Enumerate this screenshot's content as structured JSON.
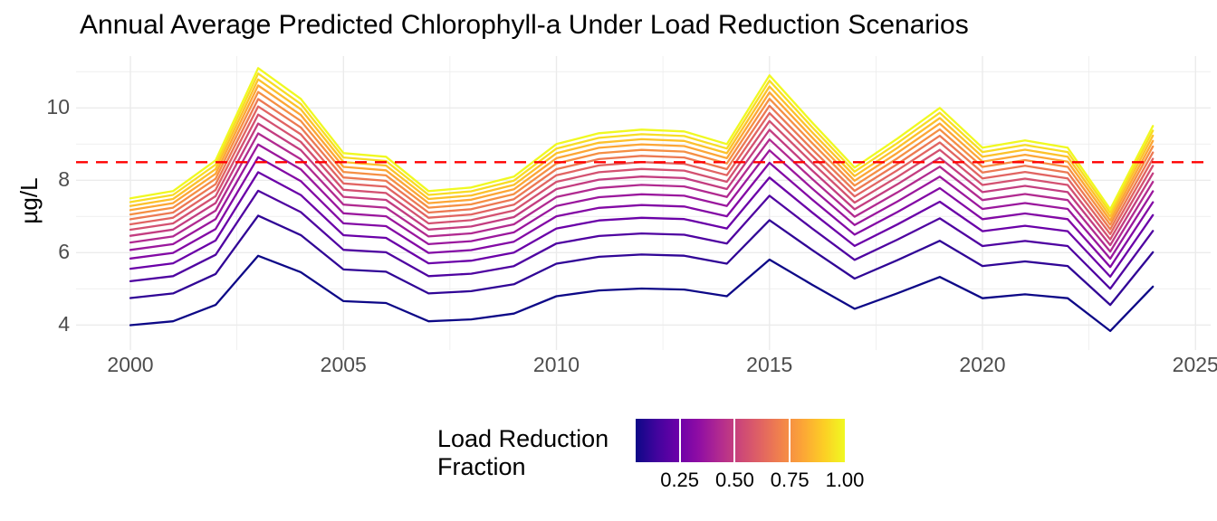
{
  "title": "Annual Average Predicted Chlorophyll-a Under Load Reduction Scenarios",
  "y_axis": {
    "label": "µg/L",
    "tick_labels": [
      "4",
      "6",
      "8",
      "10"
    ],
    "tick_values": [
      4,
      6,
      8,
      10
    ],
    "minor_values": [
      5,
      7,
      9,
      11
    ]
  },
  "x_axis": {
    "tick_labels": [
      "2000",
      "2005",
      "2010",
      "2015",
      "2020",
      "2025"
    ],
    "tick_values": [
      2000,
      2005,
      2010,
      2015,
      2020,
      2025
    ],
    "minor_values": [
      2002.5,
      2007.5,
      2012.5,
      2017.5,
      2022.5
    ]
  },
  "reference_line": {
    "value": 8.5,
    "color": "#ff0000",
    "style": "dashed"
  },
  "legend": {
    "title": "Load Reduction\nFraction",
    "tick_labels": [
      "0.25",
      "0.50",
      "0.75",
      "1.00"
    ],
    "tick_values": [
      0.25,
      0.5,
      0.75,
      1.0
    ],
    "bar_range": [
      0.05,
      1.0
    ],
    "gradient_stops": [
      "#0d0887",
      "#41049d",
      "#6a00a8",
      "#8f0da4",
      "#b12a90",
      "#cc4778",
      "#e16462",
      "#f2844b",
      "#fca636",
      "#fcce25",
      "#f0f921"
    ]
  },
  "chart_data": {
    "type": "line",
    "title": "Annual Average Predicted Chlorophyll-a Under Load Reduction Scenarios",
    "xlabel": "",
    "ylabel": "µg/L",
    "xlim": [
      1998.8,
      2025.2
    ],
    "ylim": [
      3.3,
      11.4
    ],
    "grid": true,
    "legend_position": "bottom",
    "color_scale": "plasma",
    "color_variable": "Load Reduction Fraction",
    "reference_value": 8.5,
    "x": [
      2000,
      2001,
      2002,
      2003,
      2004,
      2005,
      2006,
      2007,
      2008,
      2009,
      2010,
      2011,
      2012,
      2013,
      2014,
      2015,
      2016,
      2017,
      2018,
      2019,
      2020,
      2021,
      2022,
      2023,
      2024
    ],
    "base_values": [
      7.5,
      7.7,
      8.55,
      11.1,
      10.25,
      8.75,
      8.65,
      7.7,
      7.8,
      8.1,
      9.0,
      9.3,
      9.4,
      9.35,
      9.0,
      10.9,
      9.6,
      8.35,
      9.15,
      10.0,
      8.9,
      9.1,
      8.9,
      7.2,
      9.5
    ],
    "value_rule": "series value at year i = base_values[i] * multiplier (base series is fraction 1.00)",
    "series": [
      {
        "fraction": 0.05,
        "multiplier": 0.5327,
        "color": "#0d0887"
      },
      {
        "fraction": 0.113,
        "multiplier": 0.6327,
        "color": "#300596"
      },
      {
        "fraction": 0.177,
        "multiplier": 0.6947,
        "color": "#4f03a1"
      },
      {
        "fraction": 0.24,
        "multiplier": 0.7408,
        "color": "#6a00a8"
      },
      {
        "fraction": 0.303,
        "multiplier": 0.7782,
        "color": "#8309a5"
      },
      {
        "fraction": 0.367,
        "multiplier": 0.8099,
        "color": "#9a179d"
      },
      {
        "fraction": 0.43,
        "multiplier": 0.8374,
        "color": "#b12a90"
      },
      {
        "fraction": 0.493,
        "multiplier": 0.862,
        "color": "#c33d80"
      },
      {
        "fraction": 0.557,
        "multiplier": 0.8842,
        "color": "#d35171"
      },
      {
        "fraction": 0.62,
        "multiplier": 0.9044,
        "color": "#e16462"
      },
      {
        "fraction": 0.683,
        "multiplier": 0.923,
        "color": "#ec7953"
      },
      {
        "fraction": 0.747,
        "multiplier": 0.9405,
        "color": "#f58f44"
      },
      {
        "fraction": 0.81,
        "multiplier": 0.9567,
        "color": "#fca636"
      },
      {
        "fraction": 0.873,
        "multiplier": 0.9719,
        "color": "#fcc12b"
      },
      {
        "fraction": 0.937,
        "multiplier": 0.9864,
        "color": "#f8dc24"
      },
      {
        "fraction": 1.0,
        "multiplier": 1.0,
        "color": "#f0f921"
      }
    ]
  },
  "colors": {
    "gridline": "#ebebeb",
    "axis_text": "#4d4d4d",
    "title_text": "#000000",
    "reference": "#ff0000",
    "background": "#ffffff"
  }
}
